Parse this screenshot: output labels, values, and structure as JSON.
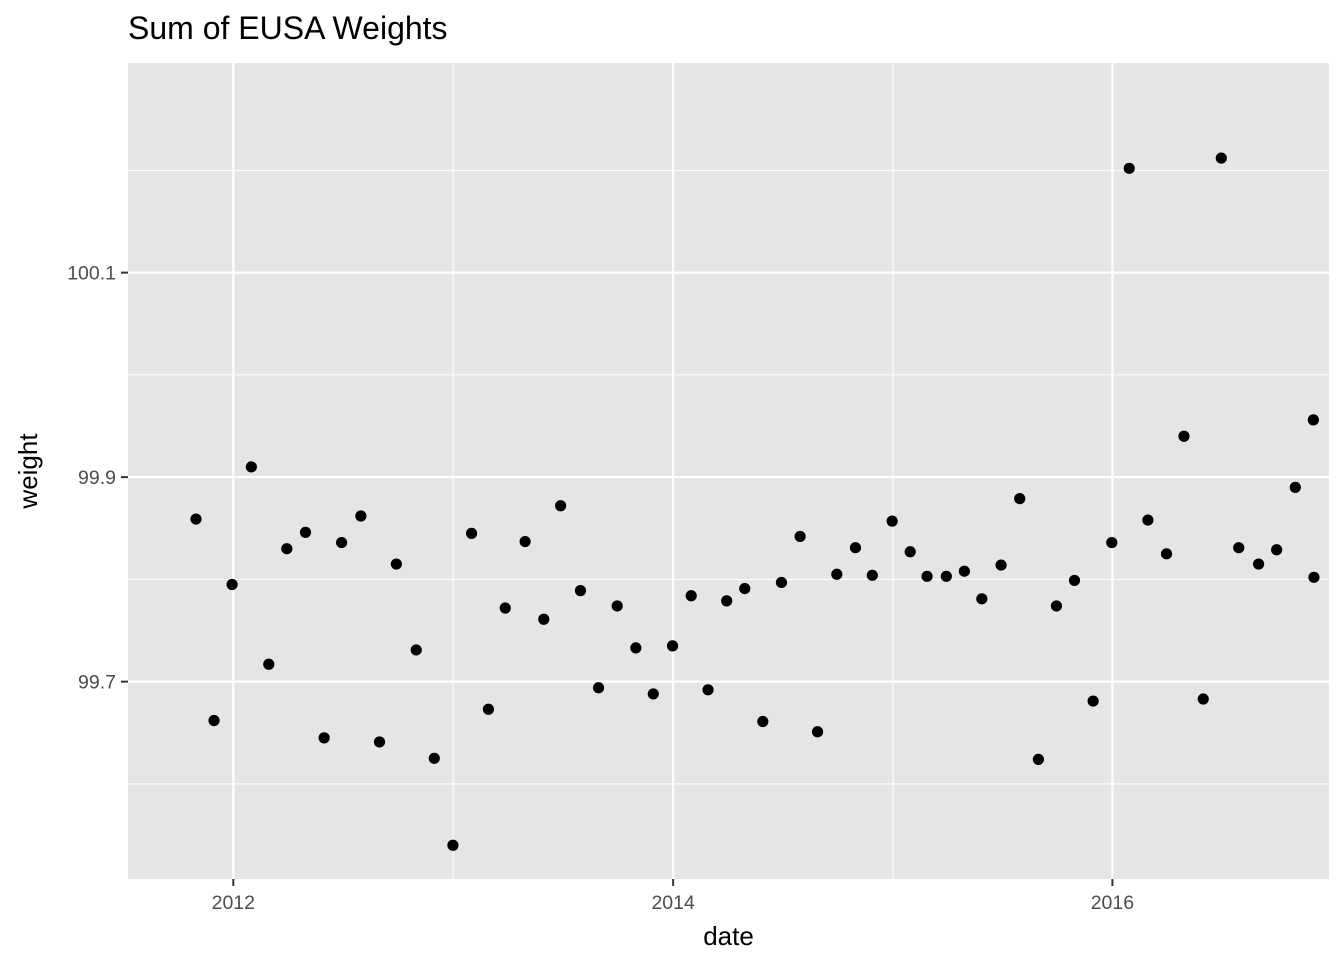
{
  "chart_data": {
    "type": "scatter",
    "title": "Sum of EUSA Weights",
    "xlabel": "date",
    "ylabel": "weight",
    "x_ticks": [
      "2012",
      "2014",
      "2016"
    ],
    "y_ticks": [
      "99.7",
      "99.9",
      "100.1"
    ],
    "xlim": [
      "2011-07-10",
      "2016-12-26"
    ],
    "ylim": [
      99.507,
      100.305
    ],
    "grid": true,
    "colors": {
      "panel": "#E5E5E5",
      "grid": "#FFFFFF",
      "point": "#000000",
      "tick_text": "#4D4D4D",
      "tick_mark": "#333333"
    },
    "x": [
      "2011-10-31",
      "2011-11-30",
      "2011-12-30",
      "2012-01-31",
      "2012-02-29",
      "2012-03-30",
      "2012-04-30",
      "2012-05-31",
      "2012-06-29",
      "2012-07-31",
      "2012-08-31",
      "2012-09-28",
      "2012-10-31",
      "2012-11-30",
      "2012-12-31",
      "2013-01-31",
      "2013-02-28",
      "2013-03-28",
      "2013-04-30",
      "2013-05-31",
      "2013-06-28",
      "2013-07-31",
      "2013-08-30",
      "2013-09-30",
      "2013-10-31",
      "2013-11-29",
      "2013-12-31",
      "2014-01-31",
      "2014-02-28",
      "2014-03-31",
      "2014-04-30",
      "2014-05-30",
      "2014-06-30",
      "2014-07-31",
      "2014-08-29",
      "2014-09-30",
      "2014-10-31",
      "2014-11-28",
      "2014-12-31",
      "2015-01-30",
      "2015-02-27",
      "2015-03-31",
      "2015-04-30",
      "2015-05-29",
      "2015-06-30",
      "2015-07-31",
      "2015-08-31",
      "2015-09-30",
      "2015-10-30",
      "2015-11-30",
      "2015-12-31",
      "2016-01-29",
      "2016-02-29",
      "2016-03-31",
      "2016-04-29",
      "2016-05-31",
      "2016-06-30",
      "2016-07-29",
      "2016-08-31",
      "2016-09-30",
      "2016-10-31",
      "2016-11-30",
      "2016-12-01"
    ],
    "y": [
      99.859,
      99.662,
      99.795,
      99.91,
      99.717,
      99.83,
      99.846,
      99.645,
      99.836,
      99.862,
      99.641,
      99.815,
      99.731,
      99.625,
      99.54,
      99.845,
      99.673,
      99.772,
      99.837,
      99.761,
      99.872,
      99.789,
      99.694,
      99.774,
      99.733,
      99.688,
      99.735,
      99.784,
      99.692,
      99.779,
      99.791,
      99.661,
      99.797,
      99.842,
      99.651,
      99.805,
      99.831,
      99.804,
      99.857,
      99.827,
      99.803,
      99.803,
      99.808,
      99.781,
      99.814,
      99.879,
      99.624,
      99.774,
      99.799,
      99.681,
      99.836,
      100.202,
      99.858,
      99.825,
      99.94,
      99.683,
      100.212,
      99.831,
      99.815,
      99.829,
      99.89,
      99.956,
      99.802
    ]
  }
}
